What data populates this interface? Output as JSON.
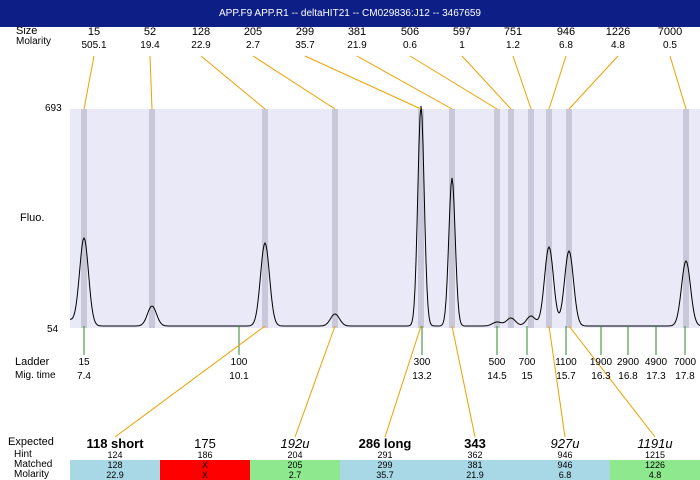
{
  "title": "APP.F9  APP.R1 -- deltaHIT21 -- CM029836:J12 -- 3467659",
  "header": {
    "size_label": "Size",
    "molarity_label": "Molarity"
  },
  "peaks": [
    {
      "size": "15",
      "molarity": "505.1"
    },
    {
      "size": "52",
      "molarity": "19.4"
    },
    {
      "size": "128",
      "molarity": "22.9"
    },
    {
      "size": "205",
      "molarity": "2.7"
    },
    {
      "size": "299",
      "molarity": "35.7"
    },
    {
      "size": "381",
      "molarity": "21.9"
    },
    {
      "size": "506",
      "molarity": "0.6"
    },
    {
      "size": "597",
      "molarity": "1"
    },
    {
      "size": "751",
      "molarity": "1.2"
    },
    {
      "size": "946",
      "molarity": "6.8"
    },
    {
      "size": "1226",
      "molarity": "4.8"
    },
    {
      "size": "7000",
      "molarity": "0.5"
    }
  ],
  "axis": {
    "y_max": "693",
    "y_min": "54",
    "ylabel": "Fluo."
  },
  "ladder_label": "Ladder",
  "migtime_label": "Mig. time",
  "ladder": [
    {
      "size": "15",
      "time": "7.4"
    },
    {
      "size": "100",
      "time": "10.1"
    },
    {
      "size": "300",
      "time": "13.2"
    },
    {
      "size": "500",
      "time": "14.5"
    },
    {
      "size": "700",
      "time": "15"
    },
    {
      "size": "1100",
      "time": "15.7"
    },
    {
      "size": "1900",
      "time": "16.3"
    },
    {
      "size": "2900",
      "time": "16.8"
    },
    {
      "size": "4900",
      "time": "17.3"
    },
    {
      "size": "7000",
      "time": "17.8"
    }
  ],
  "expected_label": "Expected",
  "hint_label": "Hint",
  "matched_label": "Matched",
  "molarity_label": "Molarity",
  "expected": [
    {
      "expected": "118 short",
      "hint": "124",
      "matched": "128",
      "molarity": "22.9",
      "status": "match"
    },
    {
      "expected": "175",
      "hint": "186",
      "matched": "X",
      "molarity": "X",
      "status": "missing"
    },
    {
      "expected": "192u",
      "hint": "204",
      "matched": "205",
      "molarity": "2.7",
      "status": "good"
    },
    {
      "expected": "286 long",
      "hint": "291",
      "matched": "299",
      "molarity": "35.7",
      "status": "match"
    },
    {
      "expected": "343",
      "hint": "362",
      "matched": "381",
      "molarity": "21.9",
      "status": "match"
    },
    {
      "expected": "927u",
      "hint": "946",
      "matched": "946",
      "molarity": "6.8",
      "status": "match"
    },
    {
      "expected": "1191u",
      "hint": "1215",
      "matched": "1226",
      "molarity": "4.8",
      "status": "good"
    }
  ],
  "colors": {
    "title_bg": "#0d1f87",
    "plot_bg": "#e9e9f7",
    "band": "#c8c8d8",
    "connector": "#f0a000",
    "ladder_tick": "#2a8a2a",
    "match": "#a8d8e6",
    "missing": "#ff0000",
    "good": "#8ee88e"
  }
}
